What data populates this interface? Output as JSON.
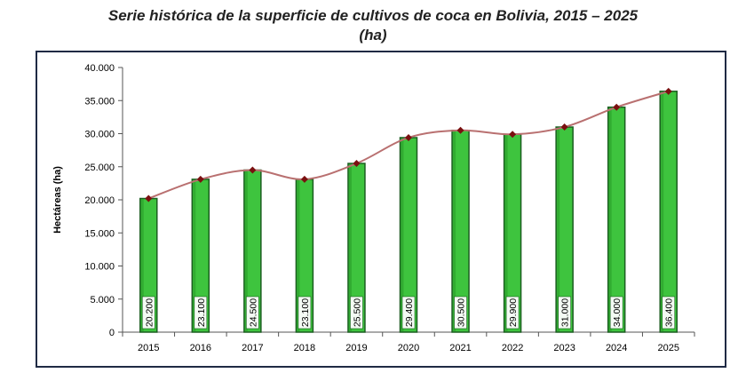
{
  "chart_data": {
    "type": "bar",
    "title": "Serie histórica de la superficie de cultivos de coca en Bolivia, 2015 – 2025",
    "subtitle": "(ha)",
    "xlabel": "",
    "ylabel": "Hectáreas (ha)",
    "categories": [
      "2015",
      "2016",
      "2017",
      "2018",
      "2019",
      "2020",
      "2021",
      "2022",
      "2023",
      "2024",
      "2025"
    ],
    "values": [
      20200,
      23100,
      24500,
      23100,
      25500,
      29400,
      30500,
      29900,
      31000,
      34000,
      36400
    ],
    "data_labels": [
      "20.200",
      "23.100",
      "24.500",
      "23.100",
      "25.500",
      "29.400",
      "30.500",
      "29.900",
      "31.000",
      "34.000",
      "36.400"
    ],
    "ylim": [
      0,
      40000
    ],
    "yticks": [
      0,
      5000,
      10000,
      15000,
      20000,
      25000,
      30000,
      35000,
      40000
    ],
    "ytick_labels": [
      "0",
      "5.000",
      "10.000",
      "15.000",
      "20.000",
      "25.000",
      "30.000",
      "35.000",
      "40.000"
    ],
    "overlay": "smoothed line with diamond markers",
    "grid": false,
    "legend": "none",
    "colors": {
      "bar": "#3ec43e",
      "bar_edge": "#1b5e20",
      "line": "#b97070",
      "marker": "#7a1010"
    }
  }
}
